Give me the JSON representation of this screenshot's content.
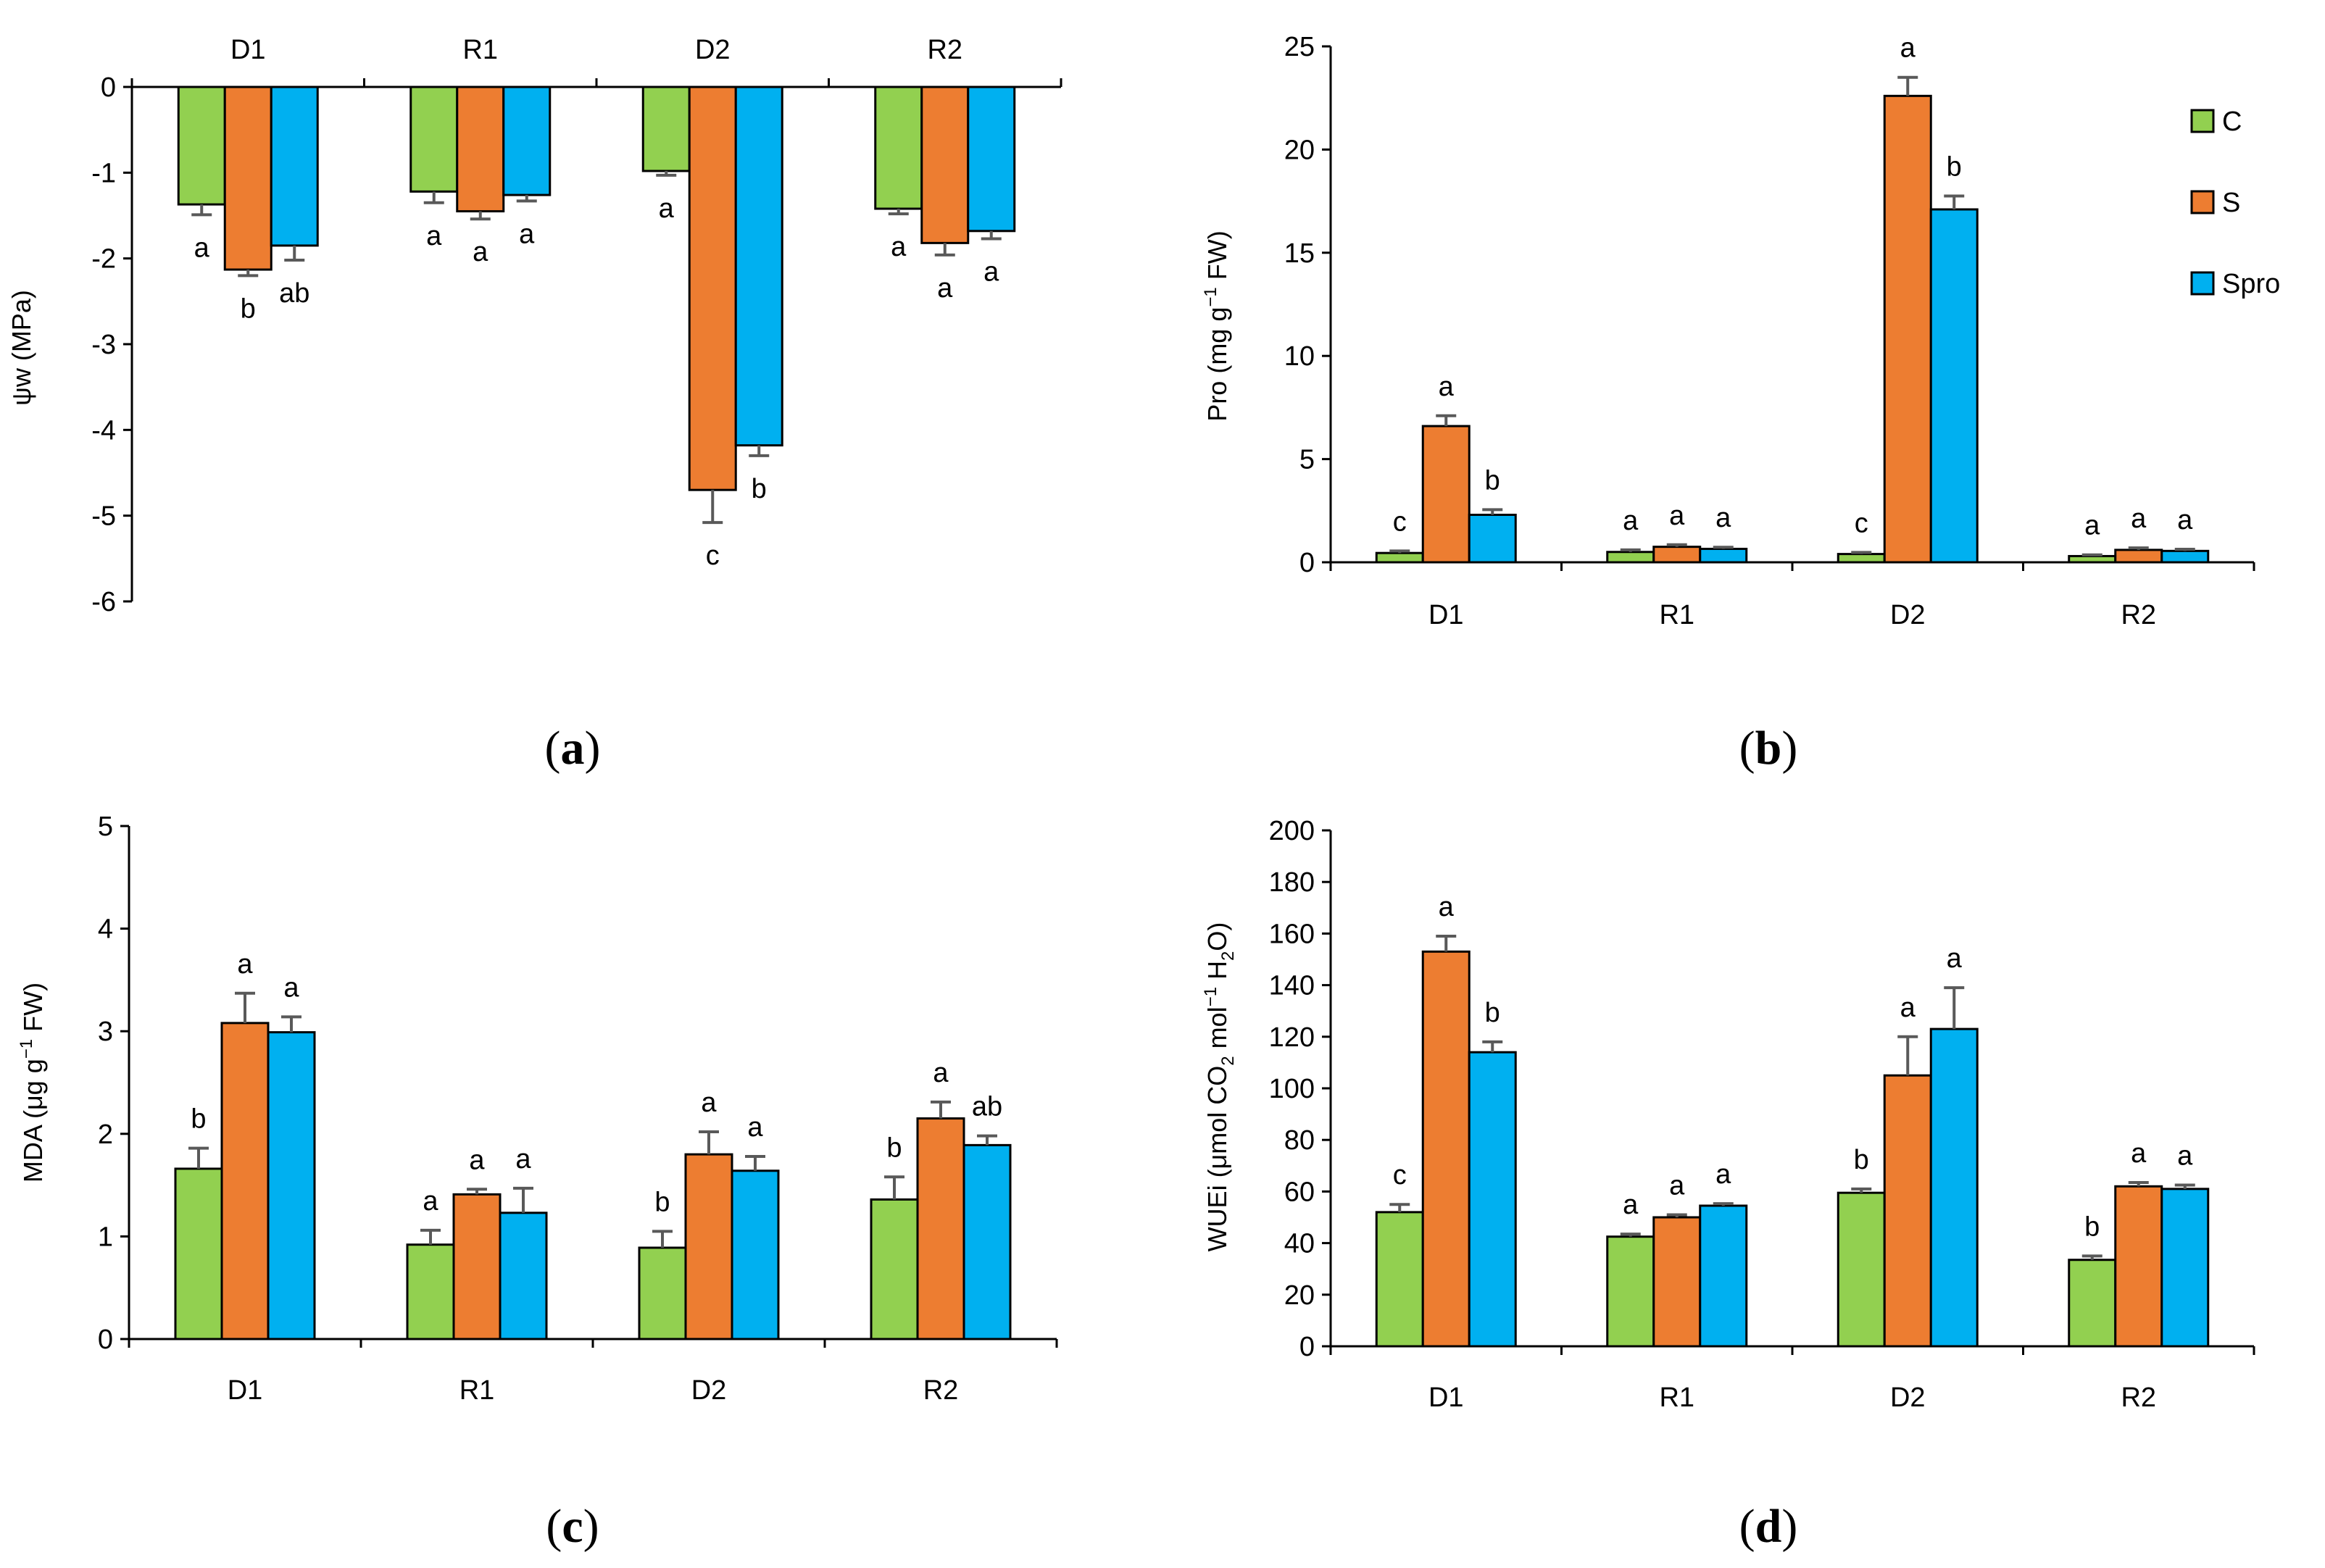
{
  "colors": {
    "C": "#92d050",
    "S": "#ed7d31",
    "Spro": "#00b0f0",
    "axis": "#000000",
    "error": "#595959"
  },
  "legend": [
    {
      "key": "C",
      "label": "C"
    },
    {
      "key": "S",
      "label": "S"
    },
    {
      "key": "Spro",
      "label": "Spro"
    }
  ],
  "chart_data": [
    {
      "id": "a",
      "panel_label": "a",
      "type": "bar",
      "categories": [
        "D1",
        "R1",
        "D2",
        "R2"
      ],
      "ylabel": "ψw (MPa)",
      "ylim": [
        -6,
        0
      ],
      "yticks": [
        0,
        -1,
        -2,
        -3,
        -4,
        -5,
        -6
      ],
      "categories_position": "top",
      "series": [
        {
          "name": "C",
          "values": [
            -1.37,
            -1.22,
            -0.98,
            -1.42
          ],
          "errors": [
            0.12,
            0.13,
            0.05,
            0.06
          ],
          "letters": [
            "a",
            "a",
            "a",
            "a"
          ]
        },
        {
          "name": "S",
          "values": [
            -2.13,
            -1.45,
            -4.7,
            -1.82
          ],
          "errors": [
            0.07,
            0.09,
            0.38,
            0.14
          ],
          "letters": [
            "b",
            "a",
            "c",
            "a"
          ]
        },
        {
          "name": "Spro",
          "values": [
            -1.85,
            -1.26,
            -4.18,
            -1.68
          ],
          "errors": [
            0.17,
            0.07,
            0.12,
            0.09
          ],
          "letters": [
            "ab",
            "a",
            "b",
            "a"
          ]
        }
      ]
    },
    {
      "id": "b",
      "panel_label": "b",
      "type": "bar",
      "categories": [
        "D1",
        "R1",
        "D2",
        "R2"
      ],
      "ylabel": "Pro (mg g⁻¹ FW)",
      "ylim": [
        0,
        25
      ],
      "yticks": [
        0,
        5,
        10,
        15,
        20,
        25
      ],
      "categories_position": "bottom",
      "series": [
        {
          "name": "C",
          "values": [
            0.45,
            0.5,
            0.4,
            0.3
          ],
          "errors": [
            0.1,
            0.1,
            0.08,
            0.06
          ],
          "letters": [
            "c",
            "a",
            "c",
            "a"
          ]
        },
        {
          "name": "S",
          "values": [
            6.6,
            0.75,
            22.6,
            0.6
          ],
          "errors": [
            0.5,
            0.1,
            0.9,
            0.1
          ],
          "letters": [
            "a",
            "a",
            "a",
            "a"
          ]
        },
        {
          "name": "Spro",
          "values": [
            2.3,
            0.65,
            17.1,
            0.55
          ],
          "errors": [
            0.25,
            0.08,
            0.65,
            0.08
          ],
          "letters": [
            "b",
            "a",
            "b",
            "a"
          ]
        }
      ]
    },
    {
      "id": "c",
      "panel_label": "c",
      "type": "bar",
      "categories": [
        "D1",
        "R1",
        "D2",
        "R2"
      ],
      "ylabel": "MDA (μg g⁻¹ FW)",
      "ylim": [
        0,
        5
      ],
      "yticks": [
        0,
        1,
        2,
        3,
        4,
        5
      ],
      "categories_position": "bottom",
      "series": [
        {
          "name": "C",
          "values": [
            1.66,
            0.92,
            0.89,
            1.36
          ],
          "errors": [
            0.2,
            0.14,
            0.16,
            0.22
          ],
          "letters": [
            "b",
            "a",
            "b",
            "b"
          ]
        },
        {
          "name": "S",
          "values": [
            3.08,
            1.41,
            1.8,
            2.15
          ],
          "errors": [
            0.29,
            0.05,
            0.22,
            0.16
          ],
          "letters": [
            "a",
            "a",
            "a",
            "a"
          ]
        },
        {
          "name": "Spro",
          "values": [
            2.99,
            1.23,
            1.64,
            1.89
          ],
          "errors": [
            0.15,
            0.24,
            0.14,
            0.09
          ],
          "letters": [
            "a",
            "a",
            "a",
            "ab"
          ]
        }
      ]
    },
    {
      "id": "d",
      "panel_label": "d",
      "type": "bar",
      "categories": [
        "D1",
        "R1",
        "D2",
        "R2"
      ],
      "ylabel": "WUEi (μmol CO₂ mol⁻¹ H₂O)",
      "ylim": [
        0,
        200
      ],
      "yticks": [
        0,
        20,
        40,
        60,
        80,
        100,
        120,
        140,
        160,
        180,
        200
      ],
      "categories_position": "bottom",
      "series": [
        {
          "name": "C",
          "values": [
            52,
            42.5,
            59.5,
            33.5
          ],
          "errors": [
            3,
            1,
            1.5,
            1.5
          ],
          "letters": [
            "c",
            "a",
            "b",
            "b"
          ]
        },
        {
          "name": "S",
          "values": [
            153,
            50,
            105,
            62
          ],
          "errors": [
            6,
            1,
            15,
            1.5
          ],
          "letters": [
            "a",
            "a",
            "a",
            "a"
          ]
        },
        {
          "name": "Spro",
          "values": [
            114,
            54.5,
            123,
            61
          ],
          "errors": [
            4,
            0.8,
            16,
            1.5
          ],
          "letters": [
            "b",
            "a",
            "a",
            "a"
          ]
        }
      ]
    }
  ]
}
